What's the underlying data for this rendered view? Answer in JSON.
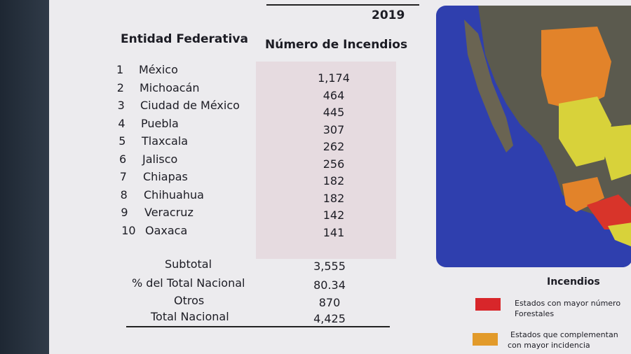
{
  "table": {
    "year": "2019",
    "headers": [
      "Entidad Federativa",
      "Número de Incendios"
    ],
    "rows": [
      [
        "1",
        "México",
        "1,174"
      ],
      [
        "2",
        "Michoacán",
        "464"
      ],
      [
        "3",
        "Ciudad de México",
        "445"
      ],
      [
        "4",
        "Puebla",
        "307"
      ],
      [
        "5",
        "Tlaxcala",
        "262"
      ],
      [
        "6",
        "Jalisco",
        "256"
      ],
      [
        "7",
        "Chiapas",
        "182"
      ],
      [
        "8",
        "Chihuahua",
        "182"
      ],
      [
        "9",
        "Veracruz",
        "142"
      ],
      [
        "10",
        "Oaxaca",
        "141"
      ]
    ],
    "summary": [
      [
        "Subtotal",
        "3,555"
      ],
      [
        "% del Total Nacional",
        "80.34"
      ],
      [
        "Otros",
        "870"
      ],
      [
        "Total Nacional",
        "4,425"
      ]
    ]
  },
  "legend": {
    "title": "Incendios",
    "items": [
      {
        "line1": "Estados con mayor número",
        "line2": "Forestales"
      },
      {
        "line1": "Estados que complementan",
        "line2": "con mayor incidencia"
      }
    ]
  }
}
